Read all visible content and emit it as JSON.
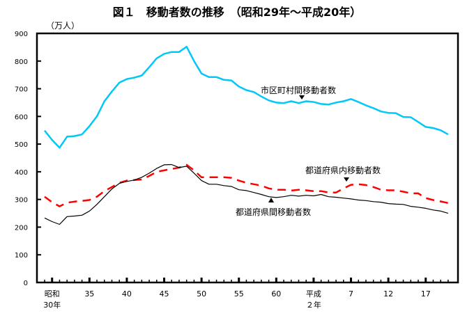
{
  "chart_data": {
    "type": "line",
    "title": "図１　移動者数の推移　（昭和29年～平成20年）",
    "ylabel": "（万人）",
    "xlabel": "",
    "ylim": [
      0,
      900
    ],
    "yticks": [
      0,
      100,
      200,
      300,
      400,
      500,
      600,
      700,
      800,
      900
    ],
    "x_start_year": 1954,
    "x": [
      1954,
      1955,
      1956,
      1957,
      1958,
      1959,
      1960,
      1961,
      1962,
      1963,
      1964,
      1965,
      1966,
      1967,
      1968,
      1969,
      1970,
      1971,
      1972,
      1973,
      1974,
      1975,
      1976,
      1977,
      1978,
      1979,
      1980,
      1981,
      1982,
      1983,
      1984,
      1985,
      1986,
      1987,
      1988,
      1989,
      1990,
      1991,
      1992,
      1993,
      1994,
      1995,
      1996,
      1997,
      1998,
      1999,
      2000,
      2001,
      2002,
      2003,
      2004,
      2005,
      2006,
      2007,
      2008
    ],
    "xtick_labels": [
      {
        "year": 1955,
        "line1": "昭和",
        "line2": "30年"
      },
      {
        "year": 1960,
        "line1": "35",
        "line2": ""
      },
      {
        "year": 1965,
        "line1": "40",
        "line2": ""
      },
      {
        "year": 1970,
        "line1": "45",
        "line2": ""
      },
      {
        "year": 1975,
        "line1": "50",
        "line2": ""
      },
      {
        "year": 1980,
        "line1": "55",
        "line2": ""
      },
      {
        "year": 1985,
        "line1": "60",
        "line2": ""
      },
      {
        "year": 1990,
        "line1": "平成",
        "line2": "２年"
      },
      {
        "year": 1995,
        "line1": "7",
        "line2": ""
      },
      {
        "year": 2000,
        "line1": "12",
        "line2": ""
      },
      {
        "year": 2005,
        "line1": "17",
        "line2": ""
      }
    ],
    "series": [
      {
        "name": "市区町村間移動者数",
        "color": "#00c8f8",
        "style": "solid",
        "values": [
          549,
          515,
          487,
          527,
          529,
          535,
          565,
          600,
          655,
          690,
          722,
          735,
          740,
          748,
          778,
          810,
          826,
          833,
          833,
          852,
          800,
          755,
          742,
          742,
          732,
          730,
          708,
          695,
          688,
          672,
          658,
          650,
          648,
          655,
          648,
          655,
          652,
          645,
          643,
          650,
          655,
          663,
          652,
          640,
          630,
          618,
          613,
          612,
          598,
          597,
          580,
          562,
          558,
          550,
          535
        ]
      },
      {
        "name": "都道府県内移動者数",
        "color": "#ff0000",
        "style": "dashed",
        "values": [
          310,
          290,
          275,
          288,
          292,
          295,
          298,
          310,
          330,
          345,
          360,
          368,
          370,
          372,
          385,
          400,
          405,
          410,
          415,
          425,
          405,
          380,
          380,
          380,
          380,
          378,
          368,
          360,
          355,
          350,
          340,
          335,
          335,
          332,
          335,
          333,
          330,
          330,
          325,
          325,
          340,
          353,
          355,
          352,
          345,
          335,
          333,
          333,
          328,
          322,
          322,
          305,
          298,
          293,
          287
        ]
      },
      {
        "name": "都道府県間移動者数",
        "color": "#000000",
        "style": "solid",
        "values": [
          233,
          220,
          210,
          238,
          240,
          243,
          258,
          282,
          310,
          338,
          358,
          365,
          370,
          380,
          395,
          412,
          425,
          426,
          415,
          420,
          395,
          368,
          355,
          355,
          350,
          347,
          335,
          332,
          325,
          318,
          310,
          307,
          310,
          315,
          312,
          315,
          313,
          318,
          310,
          308,
          305,
          302,
          298,
          296,
          292,
          290,
          285,
          283,
          282,
          275,
          272,
          268,
          262,
          258,
          250
        ]
      }
    ],
    "legend": "inline-annotations",
    "grid": false
  }
}
